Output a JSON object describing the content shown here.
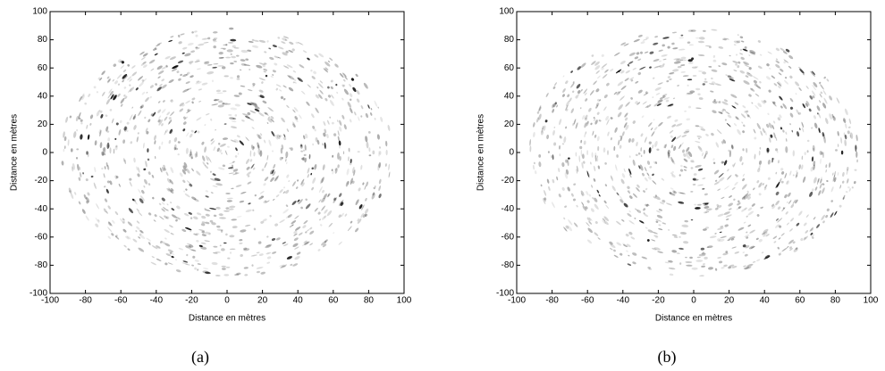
{
  "chart_data": [
    {
      "type": "image",
      "xlabel": "Distance en mètres",
      "ylabel": "Distance en mètres",
      "caption": "(a)",
      "xlim": [
        -100,
        100
      ],
      "ylim": [
        -100,
        100
      ],
      "xticks": [
        -100,
        -80,
        -60,
        -40,
        -20,
        0,
        20,
        40,
        60,
        80,
        100
      ],
      "yticks": [
        -100,
        -80,
        -60,
        -40,
        -20,
        0,
        20,
        40,
        60,
        80,
        100
      ]
    },
    {
      "type": "image",
      "xlabel": "Distance en mètres",
      "ylabel": "Distance en mètres",
      "caption": "(b)",
      "xlim": [
        -100,
        100
      ],
      "ylim": [
        -100,
        100
      ],
      "xticks": [
        -100,
        -80,
        -60,
        -40,
        -20,
        0,
        20,
        40,
        60,
        80,
        100
      ],
      "yticks": [
        -100,
        -80,
        -60,
        -40,
        -20,
        0,
        20,
        40,
        60,
        80,
        100
      ]
    }
  ]
}
